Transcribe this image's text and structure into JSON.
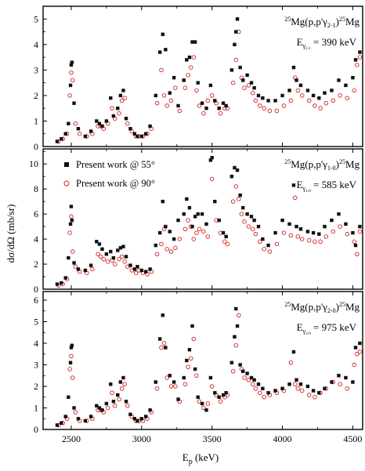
{
  "figure": {
    "xlabel": "E",
    "xlabel_sub": "p",
    "xlabel_unit": " (keV)",
    "ylabel": "dσ/dΩ (mb/sr)"
  },
  "legend": {
    "entries": [
      {
        "label": "Present work @ 55°",
        "marker": "filled-square",
        "color": "#000000"
      },
      {
        "label": "Present work @ 90°",
        "marker": "open-circle",
        "color": "#d42020"
      }
    ]
  },
  "colors": {
    "series_55": "#111111",
    "series_90": "#d42020",
    "frame": "#000000"
  },
  "chart_data": [
    {
      "type": "scatter",
      "reaction": {
        "sup_a": "25",
        "main_a": "Mg(p,p'γ",
        "sub": "2-1",
        "main_b": ")",
        "sup_b": "25",
        "main_c": "Mg"
      },
      "energy": {
        "e": "E",
        "sub_gamma": "γ",
        "sub_small": "2-1",
        "value": " = 390 keV"
      },
      "xlim": [
        2300,
        4570
      ],
      "ylim": [
        0,
        5.5
      ],
      "xticks": [
        2500,
        3000,
        3500,
        4000,
        4500
      ],
      "yticks": [
        0,
        1,
        2,
        3,
        4,
        5
      ],
      "series": [
        {
          "name": "Present work @ 55°",
          "marker": "square",
          "x": [
            2400,
            2430,
            2460,
            2480,
            2495,
            2500,
            2505,
            2520,
            2550,
            2600,
            2640,
            2680,
            2700,
            2720,
            2750,
            2780,
            2800,
            2830,
            2850,
            2870,
            2890,
            2920,
            2950,
            2970,
            3000,
            3030,
            3060,
            3100,
            3130,
            3150,
            3170,
            3200,
            3230,
            3260,
            3300,
            3320,
            3340,
            3360,
            3380,
            3400,
            3430,
            3460,
            3490,
            3520,
            3550,
            3580,
            3600,
            3640,
            3660,
            3670,
            3680,
            3700,
            3720,
            3750,
            3780,
            3800,
            3830,
            3860,
            3900,
            3950,
            4000,
            4050,
            4080,
            4100,
            4130,
            4180,
            4220,
            4260,
            4300,
            4350,
            4400,
            4450,
            4500,
            4520,
            4550
          ],
          "y": [
            0.2,
            0.3,
            0.5,
            0.9,
            2.4,
            3.2,
            3.3,
            1.7,
            0.7,
            0.4,
            0.6,
            1.0,
            0.9,
            0.8,
            1.0,
            1.9,
            1.2,
            1.5,
            2.0,
            2.2,
            1.1,
            0.7,
            0.5,
            0.4,
            0.4,
            0.5,
            0.8,
            2.0,
            3.7,
            4.4,
            3.8,
            2.1,
            2.7,
            1.6,
            2.6,
            3.4,
            3.5,
            4.1,
            4.1,
            2.5,
            1.7,
            1.5,
            2.4,
            1.8,
            1.5,
            1.7,
            1.6,
            3.0,
            4.0,
            4.5,
            5.0,
            3.1,
            2.6,
            2.8,
            2.5,
            2.3,
            2.0,
            1.9,
            1.8,
            1.8,
            2.0,
            2.2,
            3.1,
            2.6,
            2.4,
            2.2,
            2.0,
            1.9,
            2.1,
            2.2,
            2.6,
            2.4,
            2.7,
            3.4,
            3.7
          ]
        },
        {
          "name": "Present work @ 90°",
          "marker": "circle",
          "x": [
            2410,
            2440,
            2470,
            2490,
            2500,
            2510,
            2530,
            2560,
            2610,
            2650,
            2690,
            2710,
            2730,
            2760,
            2790,
            2810,
            2840,
            2860,
            2880,
            2900,
            2930,
            2960,
            2980,
            3010,
            3040,
            3070,
            3110,
            3140,
            3160,
            3180,
            3210,
            3240,
            3270,
            3310,
            3330,
            3350,
            3370,
            3390,
            3410,
            3440,
            3470,
            3500,
            3530,
            3560,
            3590,
            3610,
            3650,
            3670,
            3690,
            3710,
            3730,
            3760,
            3790,
            3810,
            3840,
            3870,
            3910,
            3960,
            4010,
            4060,
            4090,
            4110,
            4140,
            4190,
            4230,
            4270,
            4310,
            4360,
            4410,
            4460,
            4510,
            4530,
            4550
          ],
          "y": [
            0.2,
            0.3,
            0.5,
            2.0,
            2.9,
            2.6,
            0.9,
            0.5,
            0.4,
            0.5,
            0.8,
            0.8,
            0.7,
            0.9,
            1.5,
            1.1,
            1.3,
            1.8,
            1.9,
            0.9,
            0.6,
            0.4,
            0.4,
            0.4,
            0.5,
            0.7,
            1.7,
            3.0,
            2.0,
            1.6,
            1.8,
            2.3,
            1.4,
            2.3,
            2.8,
            3.1,
            3.5,
            2.2,
            1.6,
            1.3,
            1.8,
            2.0,
            1.7,
            1.3,
            1.5,
            1.5,
            2.5,
            3.4,
            4.5,
            2.7,
            2.3,
            2.4,
            2.1,
            1.8,
            1.6,
            1.5,
            1.4,
            1.4,
            1.6,
            1.8,
            2.7,
            2.2,
            2.0,
            1.8,
            1.6,
            1.5,
            1.7,
            1.8,
            2.0,
            1.9,
            2.2,
            3.2,
            3.5
          ]
        }
      ]
    },
    {
      "type": "scatter",
      "reaction": {
        "sup_a": "25",
        "main_a": "Mg(p,p'γ",
        "sub": "1-0",
        "main_b": ")",
        "sup_b": "25",
        "main_c": "Mg"
      },
      "energy": {
        "e": "E",
        "sub_gamma": "γ",
        "sub_small": "1-0",
        "value": " = 585 keV"
      },
      "xlim": [
        2300,
        4570
      ],
      "ylim": [
        0,
        11.2
      ],
      "xticks": [
        2500,
        3000,
        3500,
        4000,
        4500
      ],
      "yticks": [
        0,
        2,
        4,
        6,
        8,
        10
      ],
      "series": [
        {
          "name": "Present work @ 55°",
          "marker": "square",
          "x": [
            2400,
            2430,
            2460,
            2480,
            2495,
            2500,
            2505,
            2520,
            2550,
            2600,
            2640,
            2680,
            2700,
            2720,
            2750,
            2780,
            2800,
            2830,
            2850,
            2870,
            2890,
            2920,
            2950,
            2970,
            3000,
            3030,
            3060,
            3100,
            3130,
            3150,
            3170,
            3200,
            3230,
            3260,
            3300,
            3320,
            3340,
            3360,
            3380,
            3400,
            3430,
            3460,
            3490,
            3500,
            3520,
            3550,
            3580,
            3600,
            3640,
            3660,
            3680,
            3700,
            3720,
            3750,
            3780,
            3800,
            3830,
            3860,
            3900,
            3950,
            4000,
            4050,
            4080,
            4100,
            4130,
            4180,
            4220,
            4260,
            4300,
            4350,
            4400,
            4450,
            4500,
            4520,
            4550
          ],
          "y": [
            0.4,
            0.5,
            0.9,
            2.5,
            5.2,
            6.6,
            5.5,
            2.1,
            1.6,
            1.5,
            1.9,
            3.8,
            3.6,
            3.2,
            2.8,
            3.0,
            2.5,
            3.1,
            3.3,
            3.4,
            2.6,
            1.9,
            1.6,
            1.8,
            1.5,
            1.4,
            1.6,
            3.5,
            4.5,
            7.0,
            5.0,
            4.6,
            4.0,
            5.5,
            6.0,
            7.2,
            6.5,
            5.0,
            5.8,
            6.0,
            6.0,
            5.2,
            10.3,
            10.5,
            7.0,
            5.5,
            4.5,
            4.2,
            9.0,
            9.7,
            9.5,
            7.5,
            6.5,
            6.0,
            5.8,
            5.5,
            5.0,
            4.0,
            3.5,
            4.5,
            5.5,
            5.2,
            8.3,
            5.0,
            4.8,
            4.6,
            4.5,
            4.4,
            5.0,
            5.5,
            6.0,
            5.2,
            4.5,
            3.5,
            5.0
          ]
        },
        {
          "name": "Present work @ 90°",
          "marker": "circle",
          "x": [
            2410,
            2440,
            2470,
            2490,
            2500,
            2510,
            2530,
            2560,
            2610,
            2650,
            2690,
            2710,
            2730,
            2760,
            2790,
            2810,
            2840,
            2860,
            2880,
            2900,
            2930,
            2960,
            2980,
            3010,
            3040,
            3070,
            3110,
            3140,
            3160,
            3180,
            3210,
            3240,
            3270,
            3310,
            3330,
            3350,
            3370,
            3390,
            3410,
            3440,
            3470,
            3500,
            3530,
            3560,
            3590,
            3610,
            3650,
            3670,
            3690,
            3710,
            3730,
            3760,
            3790,
            3810,
            3840,
            3870,
            3910,
            3960,
            4010,
            4060,
            4090,
            4110,
            4140,
            4190,
            4230,
            4270,
            4310,
            4360,
            4410,
            4460,
            4510,
            4530,
            4550
          ],
          "y": [
            0.3,
            0.4,
            0.8,
            4.5,
            5.8,
            3.0,
            1.8,
            1.4,
            1.3,
            1.6,
            2.8,
            2.6,
            2.4,
            2.2,
            2.3,
            2.0,
            2.4,
            2.6,
            2.2,
            1.8,
            1.5,
            1.3,
            1.5,
            1.3,
            1.2,
            1.4,
            2.8,
            3.6,
            4.8,
            3.2,
            3.0,
            3.3,
            4.0,
            4.8,
            5.5,
            5.0,
            4.0,
            4.5,
            4.8,
            4.6,
            4.2,
            8.8,
            5.5,
            4.5,
            3.8,
            3.6,
            7.0,
            8.2,
            7.2,
            6.0,
            5.4,
            5.0,
            4.8,
            4.4,
            3.8,
            3.2,
            3.0,
            3.6,
            4.5,
            4.3,
            7.3,
            4.2,
            4.0,
            3.9,
            3.8,
            3.8,
            4.2,
            4.6,
            5.0,
            4.4,
            3.8,
            2.8,
            4.6
          ]
        }
      ]
    },
    {
      "type": "scatter",
      "reaction": {
        "sup_a": "25",
        "main_a": "Mg(p,p'γ",
        "sub": "2-0",
        "main_b": ")",
        "sup_b": "25",
        "main_c": "Mg"
      },
      "energy": {
        "e": "E",
        "sub_gamma": "γ",
        "sub_small": "2-0",
        "value": " = 975 keV"
      },
      "xlim": [
        2300,
        4570
      ],
      "ylim": [
        0,
        6.4
      ],
      "xticks": [
        2500,
        3000,
        3500,
        4000,
        4500
      ],
      "yticks": [
        0,
        1,
        2,
        3,
        4,
        5,
        6
      ],
      "series": [
        {
          "name": "Present work @ 55°",
          "marker": "square",
          "x": [
            2400,
            2430,
            2460,
            2480,
            2495,
            2500,
            2505,
            2520,
            2550,
            2600,
            2640,
            2680,
            2700,
            2720,
            2750,
            2780,
            2800,
            2830,
            2850,
            2870,
            2890,
            2920,
            2950,
            2970,
            3000,
            3030,
            3060,
            3100,
            3130,
            3150,
            3170,
            3200,
            3230,
            3260,
            3300,
            3320,
            3340,
            3360,
            3380,
            3400,
            3430,
            3460,
            3490,
            3520,
            3550,
            3580,
            3600,
            3640,
            3660,
            3670,
            3680,
            3700,
            3720,
            3750,
            3780,
            3800,
            3830,
            3860,
            3900,
            3950,
            4000,
            4050,
            4080,
            4100,
            4130,
            4180,
            4220,
            4260,
            4300,
            4350,
            4400,
            4450,
            4500,
            4520,
            4550
          ],
          "y": [
            0.2,
            0.3,
            0.6,
            1.5,
            3.1,
            3.8,
            3.9,
            1.0,
            0.5,
            0.4,
            0.6,
            1.1,
            1.0,
            0.9,
            1.2,
            2.1,
            1.3,
            1.6,
            2.2,
            2.4,
            1.3,
            0.7,
            0.5,
            0.4,
            0.5,
            0.6,
            0.9,
            2.2,
            4.2,
            5.3,
            3.8,
            2.5,
            2.2,
            1.4,
            2.4,
            3.2,
            3.7,
            4.8,
            2.8,
            1.5,
            1.2,
            0.9,
            2.4,
            1.7,
            1.5,
            1.6,
            1.7,
            3.1,
            4.3,
            5.6,
            4.8,
            3.0,
            2.7,
            2.6,
            2.4,
            2.3,
            2.1,
            1.9,
            1.7,
            1.8,
            1.9,
            2.1,
            3.6,
            2.3,
            2.1,
            2.0,
            1.8,
            1.7,
            1.9,
            2.2,
            2.5,
            2.4,
            2.2,
            3.8,
            4.0
          ]
        },
        {
          "name": "Present work @ 90°",
          "marker": "circle",
          "x": [
            2410,
            2440,
            2470,
            2490,
            2500,
            2510,
            2530,
            2560,
            2610,
            2650,
            2690,
            2710,
            2730,
            2760,
            2790,
            2810,
            2840,
            2860,
            2880,
            2900,
            2930,
            2960,
            2980,
            3010,
            3040,
            3070,
            3110,
            3140,
            3160,
            3180,
            3210,
            3240,
            3270,
            3310,
            3330,
            3350,
            3370,
            3390,
            3410,
            3440,
            3470,
            3500,
            3530,
            3560,
            3590,
            3610,
            3650,
            3670,
            3690,
            3710,
            3730,
            3760,
            3790,
            3810,
            3840,
            3870,
            3910,
            3960,
            4010,
            4060,
            4090,
            4110,
            4140,
            4190,
            4230,
            4270,
            4310,
            4360,
            4410,
            4460,
            4510,
            4530,
            4550
          ],
          "y": [
            0.2,
            0.3,
            0.5,
            2.8,
            3.4,
            2.4,
            0.8,
            0.4,
            0.4,
            0.5,
            0.9,
            0.9,
            0.8,
            1.0,
            1.7,
            1.1,
            1.4,
            1.9,
            2.1,
            1.1,
            0.6,
            0.4,
            0.4,
            0.4,
            0.5,
            0.8,
            1.9,
            3.8,
            4.0,
            2.4,
            2.0,
            2.0,
            1.3,
            2.1,
            2.9,
            3.3,
            4.2,
            2.5,
            1.3,
            1.0,
            1.2,
            2.0,
            1.6,
            1.3,
            1.5,
            1.6,
            2.7,
            3.9,
            5.3,
            2.8,
            2.4,
            2.3,
            2.1,
            1.9,
            1.7,
            1.5,
            1.6,
            1.7,
            1.8,
            3.1,
            2.1,
            1.9,
            1.8,
            1.6,
            1.5,
            1.7,
            1.9,
            2.2,
            2.1,
            1.9,
            3.0,
            3.5,
            3.6
          ]
        }
      ]
    }
  ]
}
